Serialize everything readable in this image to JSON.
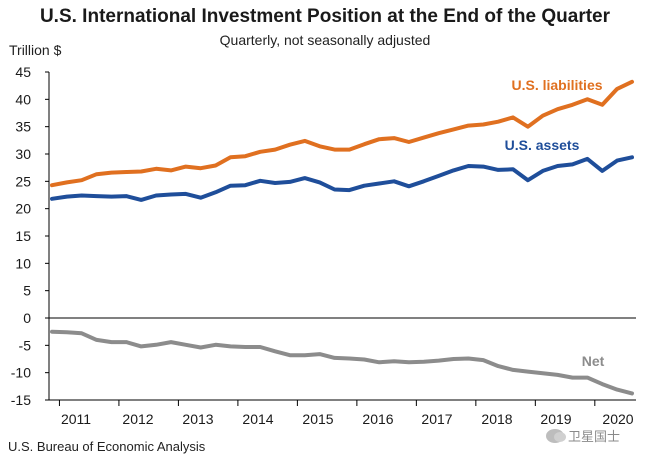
{
  "chart_data": {
    "type": "line",
    "title": "U.S. International Investment Position at the End of the Quarter",
    "subtitle": "Quarterly, not seasonally adjusted",
    "ylabel": "Trillion $",
    "xlabel": "",
    "ylim": [
      -15,
      45
    ],
    "yticks": [
      45,
      40,
      35,
      30,
      25,
      20,
      15,
      10,
      5,
      0,
      -5,
      -10,
      -15
    ],
    "year_labels": [
      "2011",
      "2012",
      "2013",
      "2014",
      "2015",
      "2016",
      "2017",
      "2018",
      "2019",
      "2020"
    ],
    "x_quarters": [
      "2010Q4",
      "2011Q1",
      "2011Q2",
      "2011Q3",
      "2011Q4",
      "2012Q1",
      "2012Q2",
      "2012Q3",
      "2012Q4",
      "2013Q1",
      "2013Q2",
      "2013Q3",
      "2013Q4",
      "2014Q1",
      "2014Q2",
      "2014Q3",
      "2014Q4",
      "2015Q1",
      "2015Q2",
      "2015Q3",
      "2015Q4",
      "2016Q1",
      "2016Q2",
      "2016Q3",
      "2016Q4",
      "2017Q1",
      "2017Q2",
      "2017Q3",
      "2017Q4",
      "2018Q1",
      "2018Q2",
      "2018Q3",
      "2018Q4",
      "2019Q1",
      "2019Q2",
      "2019Q3",
      "2019Q4",
      "2020Q1",
      "2020Q2",
      "2020Q3"
    ],
    "grid": false,
    "series": [
      {
        "name": "U.S. liabilities",
        "color": "#E07020",
        "values": [
          24.3,
          24.8,
          25.2,
          26.3,
          26.6,
          26.7,
          26.8,
          27.3,
          27.0,
          27.7,
          27.4,
          27.9,
          29.4,
          29.6,
          30.4,
          30.8,
          31.7,
          32.4,
          31.4,
          30.8,
          30.8,
          31.8,
          32.7,
          32.9,
          32.2,
          33.0,
          33.8,
          34.5,
          35.2,
          35.4,
          35.9,
          36.7,
          35.0,
          37.0,
          38.2,
          39.0,
          40.0,
          39.0,
          41.9,
          43.2
        ]
      },
      {
        "name": "U.S. assets",
        "color": "#1F4E9A",
        "values": [
          21.8,
          22.2,
          22.4,
          22.3,
          22.2,
          22.3,
          21.6,
          22.4,
          22.6,
          22.7,
          22.0,
          23.0,
          24.2,
          24.3,
          25.1,
          24.7,
          24.9,
          25.6,
          24.8,
          23.5,
          23.4,
          24.2,
          24.6,
          25.0,
          24.1,
          25.0,
          26.0,
          27.0,
          27.8,
          27.7,
          27.1,
          27.2,
          25.2,
          26.9,
          27.8,
          28.1,
          29.1,
          26.9,
          28.8,
          29.4
        ]
      },
      {
        "name": "Net",
        "color": "#8C8C8C",
        "values": [
          -2.5,
          -2.6,
          -2.8,
          -4.0,
          -4.4,
          -4.4,
          -5.2,
          -4.9,
          -4.4,
          -4.9,
          -5.4,
          -4.9,
          -5.2,
          -5.3,
          -5.3,
          -6.1,
          -6.8,
          -6.8,
          -6.6,
          -7.3,
          -7.4,
          -7.6,
          -8.1,
          -7.9,
          -8.1,
          -8.0,
          -7.8,
          -7.5,
          -7.4,
          -7.7,
          -8.8,
          -9.5,
          -9.8,
          -10.1,
          -10.4,
          -10.9,
          -10.9,
          -12.1,
          -13.1,
          -13.8
        ]
      }
    ]
  },
  "source_text": "U.S. Bureau of Economic Analysis",
  "watermark_text": "卫星国士"
}
